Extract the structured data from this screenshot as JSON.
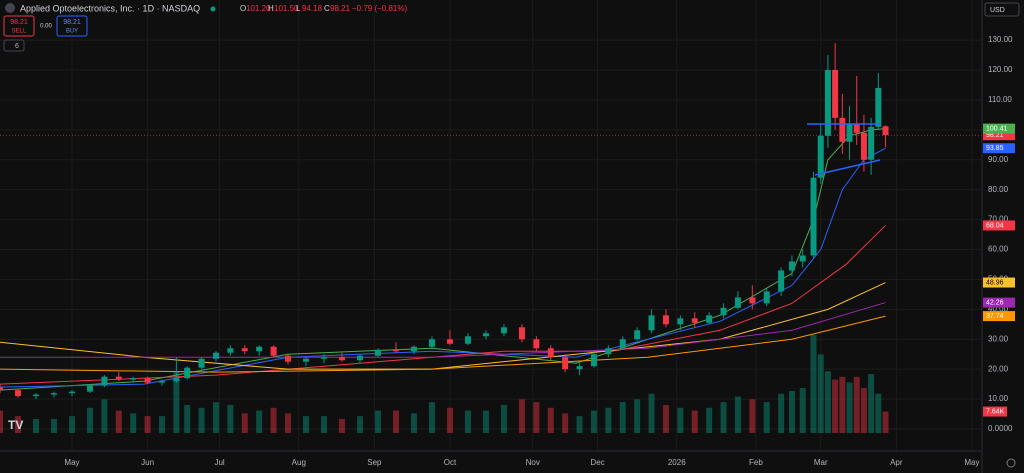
{
  "header": {
    "title": "Applied Optoelectronics, Inc. · 1D · NASDAQ",
    "ohlc": [
      {
        "key": "O",
        "value": "101.20"
      },
      {
        "key": "H",
        "value": "101.50"
      },
      {
        "key": "L",
        "value": "94.18"
      },
      {
        "key": "C",
        "value": "98.21"
      }
    ],
    "change": "−0.79 (−0.81%)"
  },
  "trade": {
    "sell": {
      "price": "98.21",
      "label": "SELL"
    },
    "spread": "0.00",
    "buy": {
      "price": "98.21",
      "label": "BUY"
    }
  },
  "indicators": "6",
  "currency": "USD",
  "chart_data": {
    "type": "candlestick",
    "x": [
      0,
      5,
      10,
      15,
      20,
      25,
      29,
      33,
      37,
      41,
      45,
      49,
      52,
      56,
      60,
      64,
      68,
      72,
      76,
      80,
      85,
      90,
      95,
      100,
      105,
      110,
      115,
      120,
      125,
      130,
      135,
      140,
      145,
      149,
      153,
      157,
      161,
      165,
      169,
      173,
      177,
      181,
      185,
      189,
      193,
      197,
      201,
      205,
      209,
      213,
      217,
      220,
      223,
      226,
      228,
      230,
      232,
      234,
      236,
      238,
      240,
      242,
      244,
      246
    ],
    "open": [
      14,
      13,
      11,
      11.5,
      12,
      12.5,
      14.5,
      17.5,
      16.5,
      17,
      15.5,
      16,
      17,
      20.5,
      23.5,
      25.5,
      27,
      26,
      27.5,
      24.5,
      22.5,
      23.5,
      24,
      23,
      24.5,
      26.5,
      26,
      27.5,
      30,
      28.5,
      31,
      32,
      34,
      30,
      27,
      24,
      20,
      21,
      25,
      27,
      30,
      33,
      38,
      35,
      37,
      35.5,
      38,
      40.5,
      44,
      42,
      46,
      53,
      56,
      58,
      84,
      98,
      120,
      104,
      96,
      102,
      99,
      90,
      101,
      101.2
    ],
    "high": [
      15,
      13.5,
      12,
      12.5,
      13,
      15,
      18,
      19,
      17.5,
      17.5,
      16.5,
      24,
      21,
      24,
      26,
      28,
      28,
      28,
      28,
      25,
      24,
      25,
      25.5,
      25,
      27,
      29,
      28,
      31,
      33,
      32,
      33,
      35,
      35,
      31,
      28,
      25,
      22,
      26,
      28,
      31,
      34,
      40,
      40,
      38,
      39,
      39,
      42,
      46,
      48,
      47,
      54,
      58,
      60,
      86,
      102,
      125,
      129,
      112,
      108,
      118,
      105,
      104,
      119,
      101.5
    ],
    "low": [
      12,
      10.5,
      10,
      10.5,
      11,
      12,
      14,
      16,
      15.5,
      15,
      14.5,
      15.5,
      16.5,
      20,
      22.5,
      24.5,
      25,
      24.5,
      24,
      21.5,
      21,
      22,
      22.5,
      22,
      24,
      25.5,
      25,
      27,
      28,
      28,
      30,
      31,
      29,
      26,
      23,
      19,
      18,
      20.5,
      24,
      26.5,
      29.5,
      32,
      34,
      33,
      34,
      35,
      37,
      40,
      40,
      41,
      44.5,
      51,
      54,
      57,
      82,
      94,
      100,
      92,
      90,
      95,
      86,
      85,
      100,
      94.18
    ],
    "close": [
      13,
      11,
      11.5,
      12,
      12.5,
      14.5,
      17.5,
      16.5,
      17,
      15.5,
      16,
      17,
      20.5,
      23.5,
      25.5,
      27,
      26,
      27.5,
      24.5,
      22.5,
      23.5,
      24,
      23,
      24.5,
      26.5,
      26,
      27.5,
      30,
      28.5,
      31,
      32,
      34,
      30,
      27,
      24,
      20,
      21,
      25,
      27,
      30,
      33,
      38,
      35,
      37,
      35.5,
      38,
      40.5,
      44,
      42,
      46,
      53,
      56,
      58,
      84,
      98,
      120,
      104,
      96,
      102,
      99,
      90,
      101,
      114,
      98.21
    ],
    "volume": [
      8,
      6,
      5,
      5,
      6,
      9,
      12,
      8,
      7,
      6,
      6,
      22,
      10,
      9,
      11,
      10,
      7,
      8,
      9,
      7,
      6,
      6,
      5,
      6,
      8,
      8,
      7,
      11,
      9,
      8,
      8,
      10,
      12,
      11,
      9,
      7,
      6,
      8,
      9,
      11,
      12,
      14,
      10,
      9,
      8,
      9,
      11,
      13,
      12,
      11,
      14,
      15,
      16,
      35,
      28,
      22,
      19,
      20,
      18,
      20,
      16,
      21,
      14,
      7.64
    ],
    "volume_label": "7.64K",
    "up_color": "#089981",
    "down_color": "#f23645",
    "lines": [
      {
        "color": "#4caf50",
        "x": [
          0,
          40,
          80,
          120,
          160,
          200,
          220,
          226,
          230,
          236,
          242,
          246
        ],
        "values": [
          13,
          16,
          25,
          27,
          22,
          38,
          52,
          70,
          90,
          98,
          100,
          100.41
        ]
      },
      {
        "color": "#2962ff",
        "x": [
          0,
          40,
          80,
          120,
          160,
          200,
          220,
          228,
          234,
          240,
          246
        ],
        "values": [
          14,
          15,
          24,
          26,
          24,
          36,
          48,
          60,
          80,
          90,
          93.85
        ]
      },
      {
        "color": "#f23645",
        "x": [
          0,
          60,
          100,
          140,
          170,
          200,
          220,
          235,
          246
        ],
        "values": [
          15,
          18,
          22,
          26,
          26,
          33,
          42,
          55,
          68.04
        ]
      },
      {
        "color": "#fbc02d",
        "x": [
          0,
          40,
          80,
          120,
          160,
          200,
          230,
          246
        ],
        "values": [
          29,
          24,
          20,
          20,
          25,
          30,
          40,
          48.96
        ]
      },
      {
        "color": "#9c27b0",
        "x": [
          0,
          60,
          120,
          180,
          220,
          246
        ],
        "values": [
          24,
          24,
          24,
          27,
          33,
          42.26
        ]
      },
      {
        "color": "#ff9800",
        "x": [
          0,
          60,
          120,
          180,
          220,
          246
        ],
        "values": [
          20,
          19,
          20,
          24,
          30,
          37.74
        ]
      }
    ],
    "xlim": [
      0,
      272.8
    ],
    "ylim": [
      -7.35,
      143.4
    ],
    "y2lim": [
      0,
      140
    ],
    "xticks": [
      {
        "value": 20,
        "label": "May"
      },
      {
        "value": 41,
        "label": "Jun"
      },
      {
        "value": 61,
        "label": "Jul"
      },
      {
        "value": 83,
        "label": "Aug"
      },
      {
        "value": 104,
        "label": "Sep"
      },
      {
        "value": 125,
        "label": "Oct"
      },
      {
        "value": 148,
        "label": "Nov"
      },
      {
        "value": 166,
        "label": "Dec"
      },
      {
        "value": 188,
        "label": "2026"
      },
      {
        "value": 210,
        "label": "Feb"
      },
      {
        "value": 228,
        "label": "Mar"
      },
      {
        "value": 249,
        "label": "Apr"
      },
      {
        "value": 270,
        "label": "May"
      }
    ],
    "yticks": [
      {
        "value": 0,
        "label": "0.0000"
      },
      {
        "value": 10,
        "label": "10.00"
      },
      {
        "value": 20,
        "label": "20.00"
      },
      {
        "value": 30,
        "label": "30.00"
      },
      {
        "value": 40,
        "label": "40.00"
      },
      {
        "value": 50,
        "label": "50.00"
      },
      {
        "value": 60,
        "label": "60.00"
      },
      {
        "value": 70,
        "label": "70.00"
      },
      {
        "value": 80,
        "label": "80.00"
      },
      {
        "value": 90,
        "label": "90.00"
      },
      {
        "value": 100,
        "label": "100.00"
      },
      {
        "value": 110,
        "label": "110.00"
      },
      {
        "value": 120,
        "label": "120.00"
      },
      {
        "value": 130,
        "label": "130.00"
      }
    ],
    "grid": true
  }
}
